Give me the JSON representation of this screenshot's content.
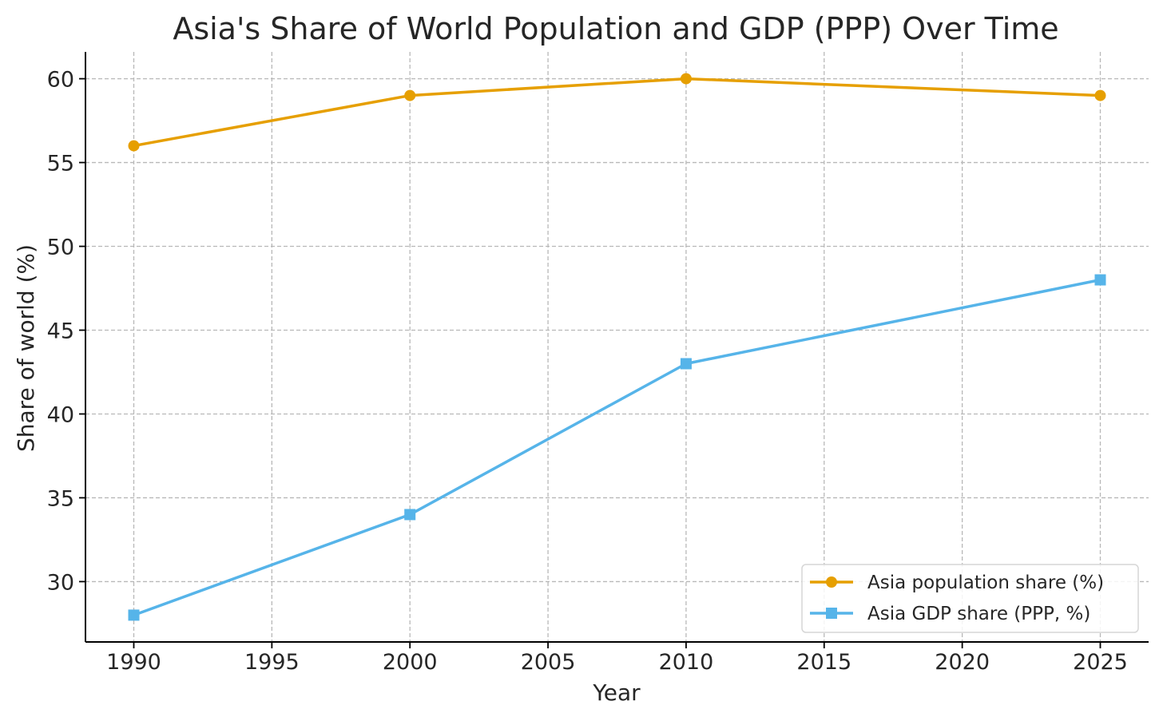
{
  "chart_data": {
    "type": "line",
    "title": "Asia's Share of World Population and GDP (PPP) Over Time",
    "xlabel": "Year",
    "ylabel": "Share of world (%)",
    "xlim": [
      1988.25,
      2026.75
    ],
    "ylim": [
      26.4,
      61.6
    ],
    "x_ticks": [
      1990,
      1995,
      2000,
      2005,
      2010,
      2015,
      2020,
      2025
    ],
    "y_ticks": [
      30,
      35,
      40,
      45,
      50,
      55,
      60
    ],
    "grid": true,
    "legend_position": "lower-right",
    "series": [
      {
        "name": "Asia population share (%)",
        "color": "#E69F00",
        "marker": "circle",
        "x": [
          1990,
          2000,
          2010,
          2025
        ],
        "y": [
          56,
          59,
          60,
          59
        ]
      },
      {
        "name": "Asia GDP share (PPP, %)",
        "color": "#56B4E9",
        "marker": "square",
        "x": [
          1990,
          2000,
          2010,
          2025
        ],
        "y": [
          28,
          34,
          43,
          48
        ]
      }
    ]
  }
}
